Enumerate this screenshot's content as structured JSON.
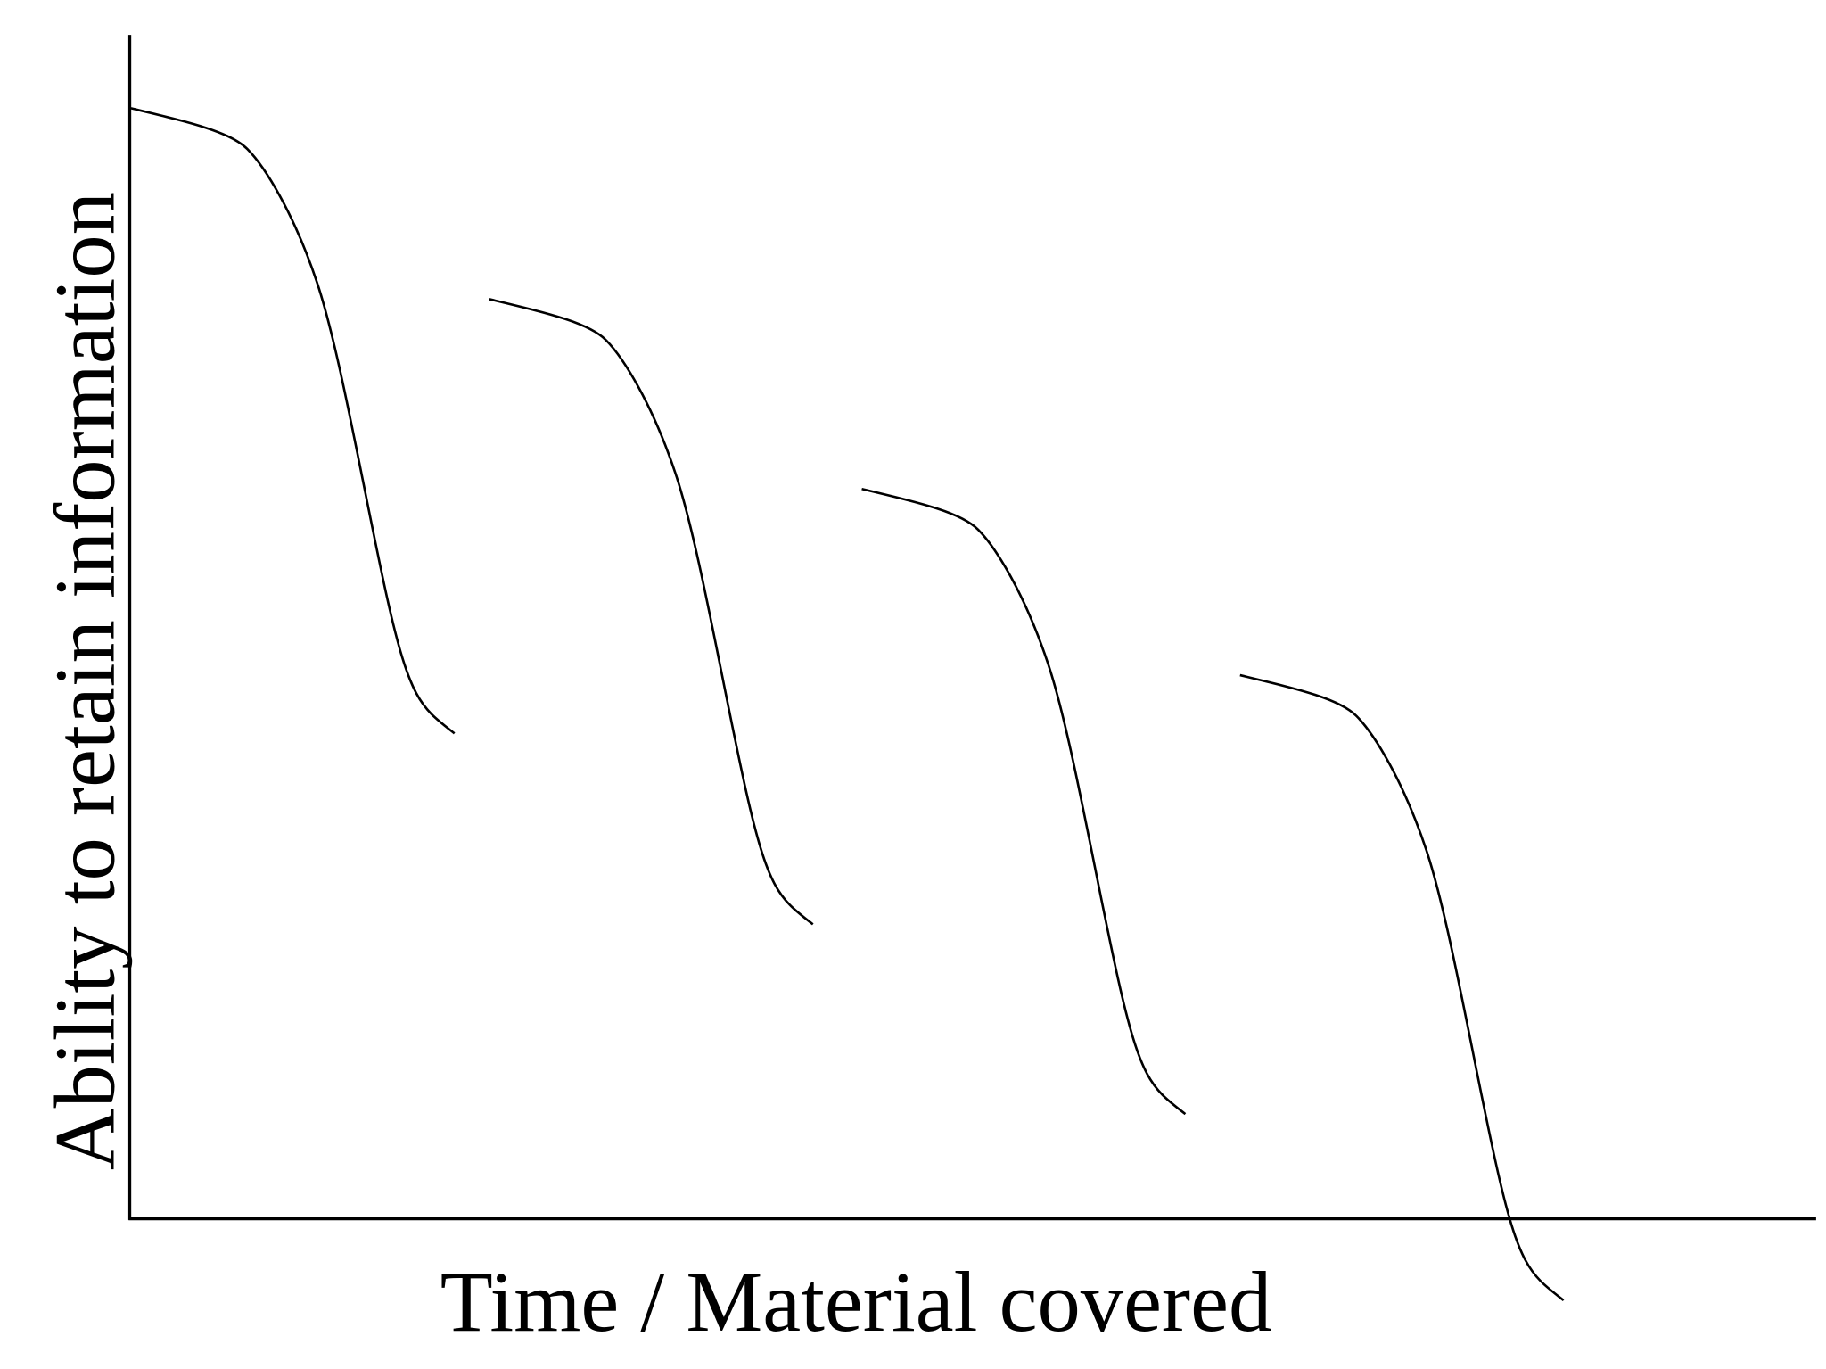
{
  "diagram": {
    "x_axis_label": "Time / Material covered",
    "y_axis_label": "Ability to retain information"
  }
}
